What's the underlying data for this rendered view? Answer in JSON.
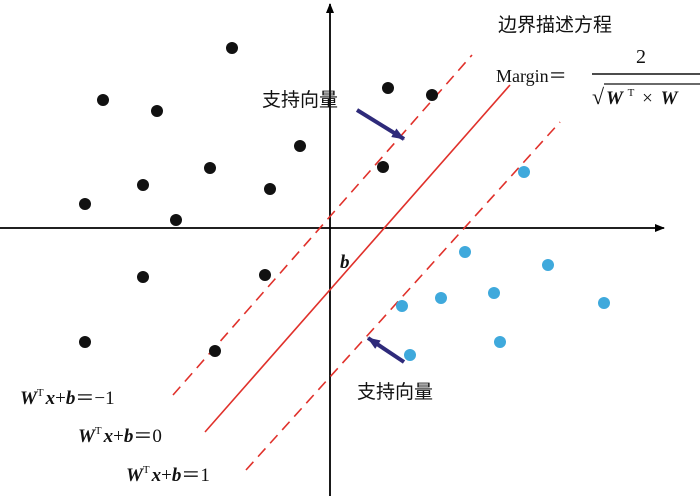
{
  "colors": {
    "axis": "#000000",
    "class_a_point": "#111111",
    "class_b_point": "#3fa9dc",
    "boundary_line": "#e0312b",
    "arrow": "#2e2a7a",
    "text": "#111111"
  },
  "labels": {
    "title": "边界描述方程",
    "margin_prefix": "Margin＝",
    "margin_numerator": "2",
    "margin_sqrt": "√",
    "margin_W1": "W",
    "margin_T": "T",
    "margin_times": "×",
    "margin_W2": "W",
    "support_vector_top": "支持向量",
    "support_vector_bottom": "支持向量",
    "b_label": "b"
  },
  "equations": [
    {
      "W": "W",
      "T": "T",
      "x": "x",
      "plus": "+",
      "b": "b",
      "rhs": "＝−1"
    },
    {
      "W": "W",
      "T": "T",
      "x": "x",
      "plus": "+",
      "b": "b",
      "rhs": "＝0"
    },
    {
      "W": "W",
      "T": "T",
      "x": "x",
      "plus": "+",
      "b": "b",
      "rhs": "＝1"
    }
  ],
  "points": {
    "class_a": [
      [
        232,
        48
      ],
      [
        103,
        100
      ],
      [
        157,
        111
      ],
      [
        388,
        88
      ],
      [
        432,
        95
      ],
      [
        300,
        146
      ],
      [
        210,
        168
      ],
      [
        143,
        185
      ],
      [
        270,
        189
      ],
      [
        383,
        167
      ],
      [
        85,
        204
      ],
      [
        176,
        220
      ],
      [
        143,
        277
      ],
      [
        265,
        275
      ],
      [
        85,
        342
      ],
      [
        215,
        351
      ]
    ],
    "class_b": [
      [
        524,
        172
      ],
      [
        465,
        252
      ],
      [
        548,
        265
      ],
      [
        441,
        298
      ],
      [
        494,
        293
      ],
      [
        402,
        306
      ],
      [
        604,
        303
      ],
      [
        500,
        342
      ],
      [
        410,
        355
      ]
    ]
  }
}
